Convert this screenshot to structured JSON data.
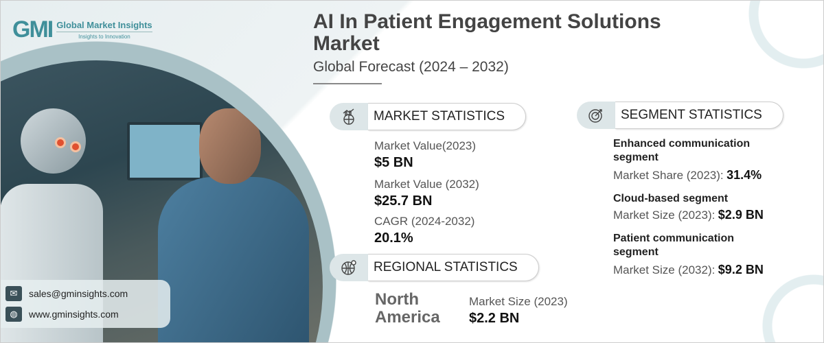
{
  "brand": {
    "logo_mark": "GMI",
    "name": "Global Market Insights",
    "tagline": "Insights to Innovation"
  },
  "header": {
    "title": "AI In Patient Engagement Solutions Market",
    "subtitle": "Global Forecast (2024 – 2032)"
  },
  "market_statistics": {
    "heading": "MARKET STATISTICS",
    "icon": "chart-globe-icon",
    "items": [
      {
        "label": "Market Value(2023)",
        "value": "$5 BN"
      },
      {
        "label": "Market Value (2032)",
        "value": "$25.7 BN"
      },
      {
        "label": "CAGR (2024-2032)",
        "value": "20.1%"
      }
    ]
  },
  "regional_statistics": {
    "heading": "REGIONAL STATISTICS",
    "icon": "globe-pin-icon",
    "region": "North America",
    "label": "Market Size (2023)",
    "value": "$2.2 BN"
  },
  "segment_statistics": {
    "heading": "SEGMENT STATISTICS",
    "icon": "target-chart-icon",
    "items": [
      {
        "segment": "Enhanced communication segment",
        "label": "Market Share (2023):",
        "value": "31.4%"
      },
      {
        "segment": "Cloud-based segment",
        "label": "Market Size (2023):",
        "value": "$2.9 BN"
      },
      {
        "segment": "Patient communication segment",
        "label": "Market Size (2032):",
        "value": "$9.2 BN"
      }
    ]
  },
  "contact": {
    "email": "sales@gminsights.com",
    "website": "www.gminsights.com"
  },
  "colors": {
    "accent": "#3f8f9a",
    "ring": "#a9c1c6",
    "text": "#444444"
  }
}
